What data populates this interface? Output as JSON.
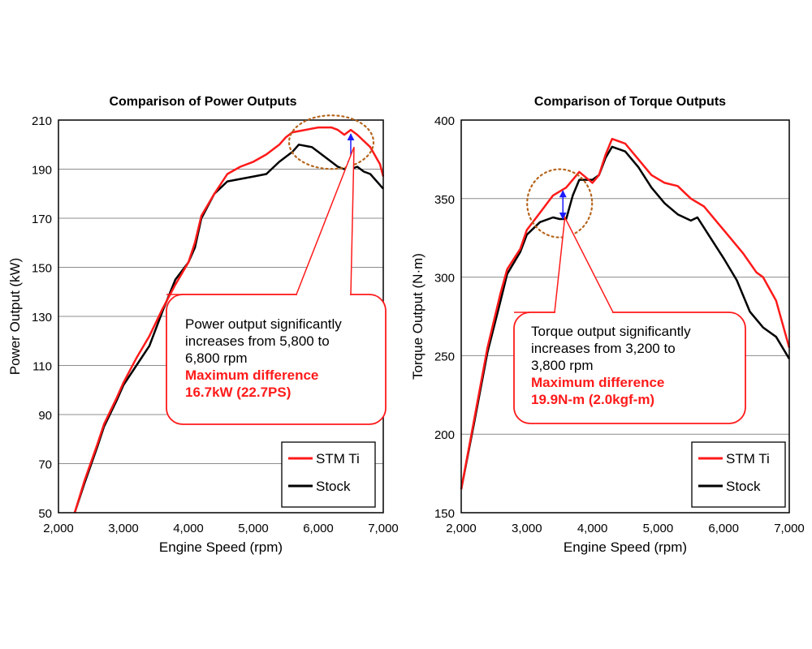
{
  "chart_data": [
    {
      "type": "line",
      "title": "Comparison of Power Outputs",
      "xlabel": "Engine Speed (rpm)",
      "ylabel": "Power Output (kW)",
      "xlim": [
        2000,
        7000
      ],
      "ylim": [
        50,
        210
      ],
      "x_ticks": [
        2000,
        3000,
        4000,
        5000,
        6000,
        7000
      ],
      "x_tick_labels": [
        "2,000",
        "3,000",
        "4,000",
        "5,000",
        "6,000",
        "7,000"
      ],
      "y_ticks": [
        50,
        70,
        90,
        110,
        130,
        150,
        170,
        190,
        210
      ],
      "y_tick_labels": [
        "50",
        "70",
        "90",
        "110",
        "130",
        "150",
        "170",
        "190",
        "210"
      ],
      "grid": "horizontal",
      "legend_position": "bottom-right",
      "series": [
        {
          "name": "STM Ti",
          "color": "#ff1a1a",
          "points": [
            [
              2250,
              50
            ],
            [
              2400,
              63
            ],
            [
              2600,
              78
            ],
            [
              2700,
              86
            ],
            [
              2900,
              97
            ],
            [
              3000,
              103
            ],
            [
              3200,
              113
            ],
            [
              3400,
              122
            ],
            [
              3600,
              133
            ],
            [
              3800,
              143
            ],
            [
              4000,
              152
            ],
            [
              4100,
              160
            ],
            [
              4200,
              171
            ],
            [
              4400,
              180
            ],
            [
              4600,
              188
            ],
            [
              4800,
              191
            ],
            [
              5000,
              193
            ],
            [
              5200,
              196
            ],
            [
              5400,
              200
            ],
            [
              5500,
              203
            ],
            [
              5600,
              205
            ],
            [
              5800,
              206
            ],
            [
              6000,
              207
            ],
            [
              6200,
              207
            ],
            [
              6300,
              206
            ],
            [
              6400,
              204
            ],
            [
              6500,
              206
            ],
            [
              6600,
              204
            ],
            [
              6800,
              199
            ],
            [
              6950,
              192
            ],
            [
              7000,
              187
            ]
          ]
        },
        {
          "name": "Stock",
          "color": "#000000",
          "points": [
            [
              2250,
              50
            ],
            [
              2400,
              62
            ],
            [
              2600,
              77
            ],
            [
              2700,
              85
            ],
            [
              2900,
              96
            ],
            [
              3000,
              102
            ],
            [
              3200,
              110
            ],
            [
              3400,
              118
            ],
            [
              3600,
              132
            ],
            [
              3800,
              145
            ],
            [
              4000,
              152
            ],
            [
              4100,
              158
            ],
            [
              4200,
              170
            ],
            [
              4400,
              180
            ],
            [
              4600,
              185
            ],
            [
              4800,
              186
            ],
            [
              5000,
              187
            ],
            [
              5200,
              188
            ],
            [
              5400,
              193
            ],
            [
              5600,
              197
            ],
            [
              5700,
              200
            ],
            [
              5900,
              199
            ],
            [
              6000,
              197
            ],
            [
              6200,
              193
            ],
            [
              6300,
              191
            ],
            [
              6400,
              190
            ],
            [
              6500,
              190
            ],
            [
              6600,
              191
            ],
            [
              6700,
              189
            ],
            [
              6800,
              188
            ],
            [
              6900,
              185
            ],
            [
              7000,
              182
            ]
          ]
        }
      ],
      "annotation": {
        "line1": "Power output significantly",
        "line2": "increases from 5,800 to",
        "line3": "6,800 rpm",
        "highlight1": "Maximum difference",
        "highlight2": "16.7kW (22.7PS)",
        "circle_center": [
          6200,
          201
        ],
        "arrow_x": 6500,
        "arrow_top": 205,
        "arrow_bottom": 190
      }
    },
    {
      "type": "line",
      "title": "Comparison of Torque Outputs",
      "xlabel": "Engine Speed (rpm)",
      "ylabel": "Torque Output (N·m)",
      "xlim": [
        2000,
        7000
      ],
      "ylim": [
        150,
        400
      ],
      "x_ticks": [
        2000,
        3000,
        4000,
        5000,
        6000,
        7000
      ],
      "x_tick_labels": [
        "2,000",
        "3,000",
        "4,000",
        "5,000",
        "6,000",
        "7,000"
      ],
      "y_ticks": [
        150,
        200,
        250,
        300,
        350,
        400
      ],
      "y_tick_labels": [
        "150",
        "200",
        "250",
        "300",
        "350",
        "400"
      ],
      "grid": "horizontal",
      "legend_position": "bottom-right",
      "series": [
        {
          "name": "STM Ti",
          "color": "#ff1a1a",
          "points": [
            [
              2000,
              165
            ],
            [
              2200,
              210
            ],
            [
              2400,
              255
            ],
            [
              2600,
              290
            ],
            [
              2700,
              305
            ],
            [
              2900,
              318
            ],
            [
              3000,
              330
            ],
            [
              3200,
              341
            ],
            [
              3400,
              352
            ],
            [
              3600,
              357
            ],
            [
              3800,
              367
            ],
            [
              4000,
              360
            ],
            [
              4100,
              365
            ],
            [
              4200,
              378
            ],
            [
              4300,
              388
            ],
            [
              4500,
              385
            ],
            [
              4700,
              375
            ],
            [
              4900,
              365
            ],
            [
              5100,
              360
            ],
            [
              5300,
              358
            ],
            [
              5500,
              350
            ],
            [
              5700,
              345
            ],
            [
              5900,
              335
            ],
            [
              6100,
              325
            ],
            [
              6300,
              315
            ],
            [
              6500,
              303
            ],
            [
              6600,
              300
            ],
            [
              6800,
              285
            ],
            [
              7000,
              255
            ]
          ]
        },
        {
          "name": "Stock",
          "color": "#000000",
          "points": [
            [
              2000,
              165
            ],
            [
              2200,
              208
            ],
            [
              2400,
              252
            ],
            [
              2600,
              285
            ],
            [
              2700,
              302
            ],
            [
              2900,
              316
            ],
            [
              3000,
              327
            ],
            [
              3200,
              335
            ],
            [
              3400,
              338
            ],
            [
              3500,
              337
            ],
            [
              3600,
              337
            ],
            [
              3700,
              352
            ],
            [
              3800,
              362
            ],
            [
              4000,
              362
            ],
            [
              4100,
              365
            ],
            [
              4200,
              376
            ],
            [
              4300,
              383
            ],
            [
              4500,
              380
            ],
            [
              4700,
              370
            ],
            [
              4900,
              357
            ],
            [
              5100,
              347
            ],
            [
              5300,
              340
            ],
            [
              5500,
              336
            ],
            [
              5600,
              338
            ],
            [
              5800,
              325
            ],
            [
              6000,
              312
            ],
            [
              6200,
              298
            ],
            [
              6400,
              278
            ],
            [
              6600,
              268
            ],
            [
              6800,
              262
            ],
            [
              7000,
              248
            ]
          ]
        }
      ],
      "annotation": {
        "line1": "Torque output significantly",
        "line2": "increases from 3,200 to",
        "line3": "3,800 rpm",
        "highlight1": "Maximum difference",
        "highlight2": "19.9N-m (2.0kgf-m)",
        "circle_center": [
          3500,
          347
        ],
        "arrow_x": 3550,
        "arrow_top": 356,
        "arrow_bottom": 336
      }
    }
  ]
}
